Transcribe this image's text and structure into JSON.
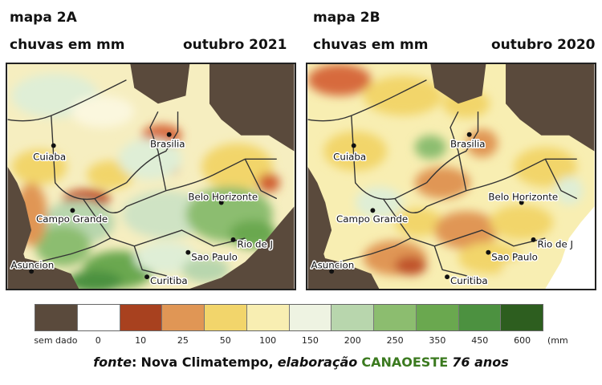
{
  "maps": [
    {
      "title": "mapa 2A",
      "subtitle": "chuvas em mm",
      "period": "outubro 2021",
      "cities": [
        "Cuiaba",
        "Brasilia",
        "Campo Grande",
        "Belo Horizonte",
        "Rio de J",
        "Sao Paulo",
        "Asuncion",
        "Curitiba"
      ]
    },
    {
      "title": "mapa 2B",
      "subtitle": "chuvas em mm",
      "period": "outubro 2020",
      "cities": [
        "Cuiaba",
        "Brasilia",
        "Campo Grande",
        "Belo Horizonte",
        "Rio de J",
        "Sao Paulo",
        "Asuncion",
        "Curitiba"
      ]
    }
  ],
  "legend": {
    "labels": [
      "sem dado",
      "0",
      "10",
      "25",
      "50",
      "100",
      "150",
      "200",
      "250",
      "350",
      "450",
      "600"
    ],
    "colors": [
      "#5a4a3c",
      "#ffffff",
      "#a8411f",
      "#e09655",
      "#f2d56b",
      "#f8eeb2",
      "#eef3e2",
      "#b8d6ad",
      "#8cbd6f",
      "#6aa84f",
      "#4c9140",
      "#2d5e1f"
    ],
    "unit": "(mm"
  },
  "source": {
    "label": "fonte",
    "separator": ":",
    "provider": "Nova Climatempo,",
    "elaboration": "elaboração",
    "brand": "CANAOESTE",
    "years": "76 anos"
  }
}
